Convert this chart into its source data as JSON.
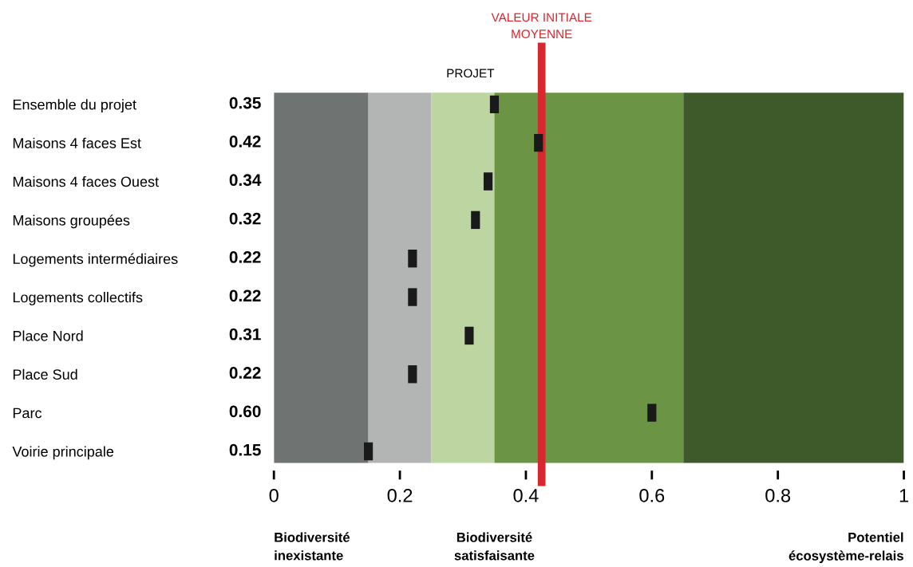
{
  "chart_data": {
    "type": "scatter",
    "orientation": "horizontal",
    "categories": [
      "Ensemble du projet",
      "Maisons 4 faces Est",
      "Maisons 4 faces Ouest",
      "Maisons groupées",
      "Logements intermédiaires",
      "Logements collectifs",
      "Place Nord",
      "Place Sud",
      "Parc",
      "Voirie principale"
    ],
    "values": [
      0.35,
      0.42,
      0.34,
      0.32,
      0.22,
      0.22,
      0.31,
      0.22,
      0.6,
      0.15
    ],
    "color": "#1a1a1a",
    "value_labels": [
      "0.35",
      "0.42",
      "0.34",
      "0.32",
      "0.22",
      "0.22",
      "0.31",
      "0.22",
      "0.60",
      "0.15"
    ],
    "xlim": [
      0,
      1
    ],
    "xticks": [
      0,
      0.2,
      0.4,
      0.6,
      0.8,
      1
    ],
    "grid": false,
    "bands": [
      {
        "axis": "x",
        "from": 0,
        "to": 0.15,
        "color": "#6f7473"
      },
      {
        "axis": "x",
        "from": 0.15,
        "to": 0.25,
        "color": "#b3b4b4"
      },
      {
        "axis": "x",
        "from": 0.25,
        "to": 0.35,
        "color": "#bdd5a0"
      },
      {
        "axis": "x",
        "from": 0.35,
        "to": 0.65,
        "color": "#6b9445"
      },
      {
        "axis": "x",
        "from": 0.65,
        "to": 1,
        "color": "#3e5a2a"
      }
    ],
    "ref_lines": [
      {
        "axis": "x",
        "value": 0.425,
        "label": "VALEUR INITIALE\nMOYENNE",
        "color": "#d7282f"
      }
    ],
    "annotations": [
      {
        "text": "PROJET",
        "x": 0.35,
        "y": "Ensemble du projet"
      },
      "Biodiversité\ninexistante",
      "Biodiversité\nsatisfaisante",
      "Potentiel\nécosystème-relais"
    ]
  }
}
